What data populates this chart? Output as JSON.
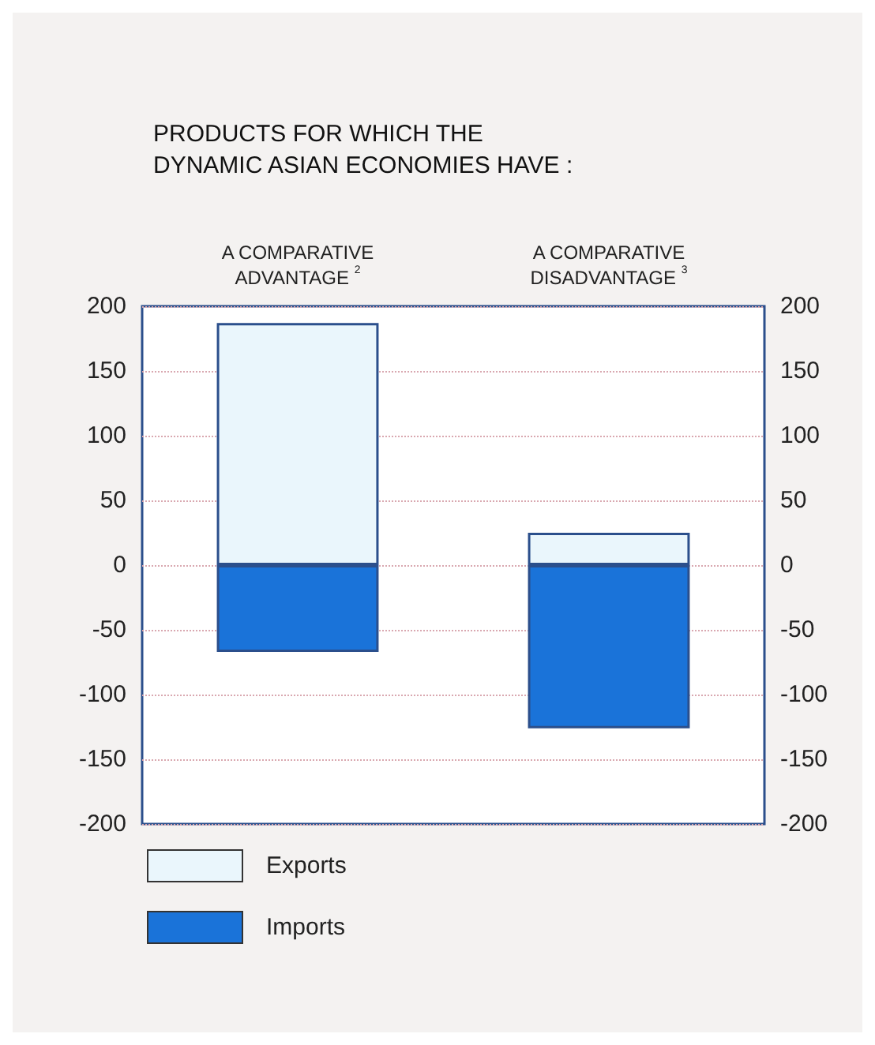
{
  "chart_data": {
    "type": "bar",
    "title": "PRODUCTS FOR WHICH THE\nDYNAMIC ASIAN ECONOMIES HAVE :",
    "categories": [
      "A COMPARATIVE\nADVANTAGE $^{2}$",
      "A COMPARATIVE\nDISADVANTAGE $^{3}$"
    ],
    "series": [
      {
        "name": "Exports",
        "color": "#eaf6fc",
        "values": [
          187,
          25
        ]
      },
      {
        "name": "Imports",
        "color": "#1a73d9",
        "values": [
          -67,
          -126
        ]
      }
    ],
    "stacked": true,
    "ylim": [
      -200,
      200
    ],
    "yticks": [
      -200,
      -150,
      -100,
      -50,
      0,
      50,
      100,
      150,
      200
    ],
    "y2lim": [
      -200,
      200
    ],
    "y2ticks": [
      -200,
      -150,
      -100,
      -50,
      0,
      50,
      100,
      150,
      200
    ],
    "grid": "y",
    "legend": "bottom left"
  }
}
